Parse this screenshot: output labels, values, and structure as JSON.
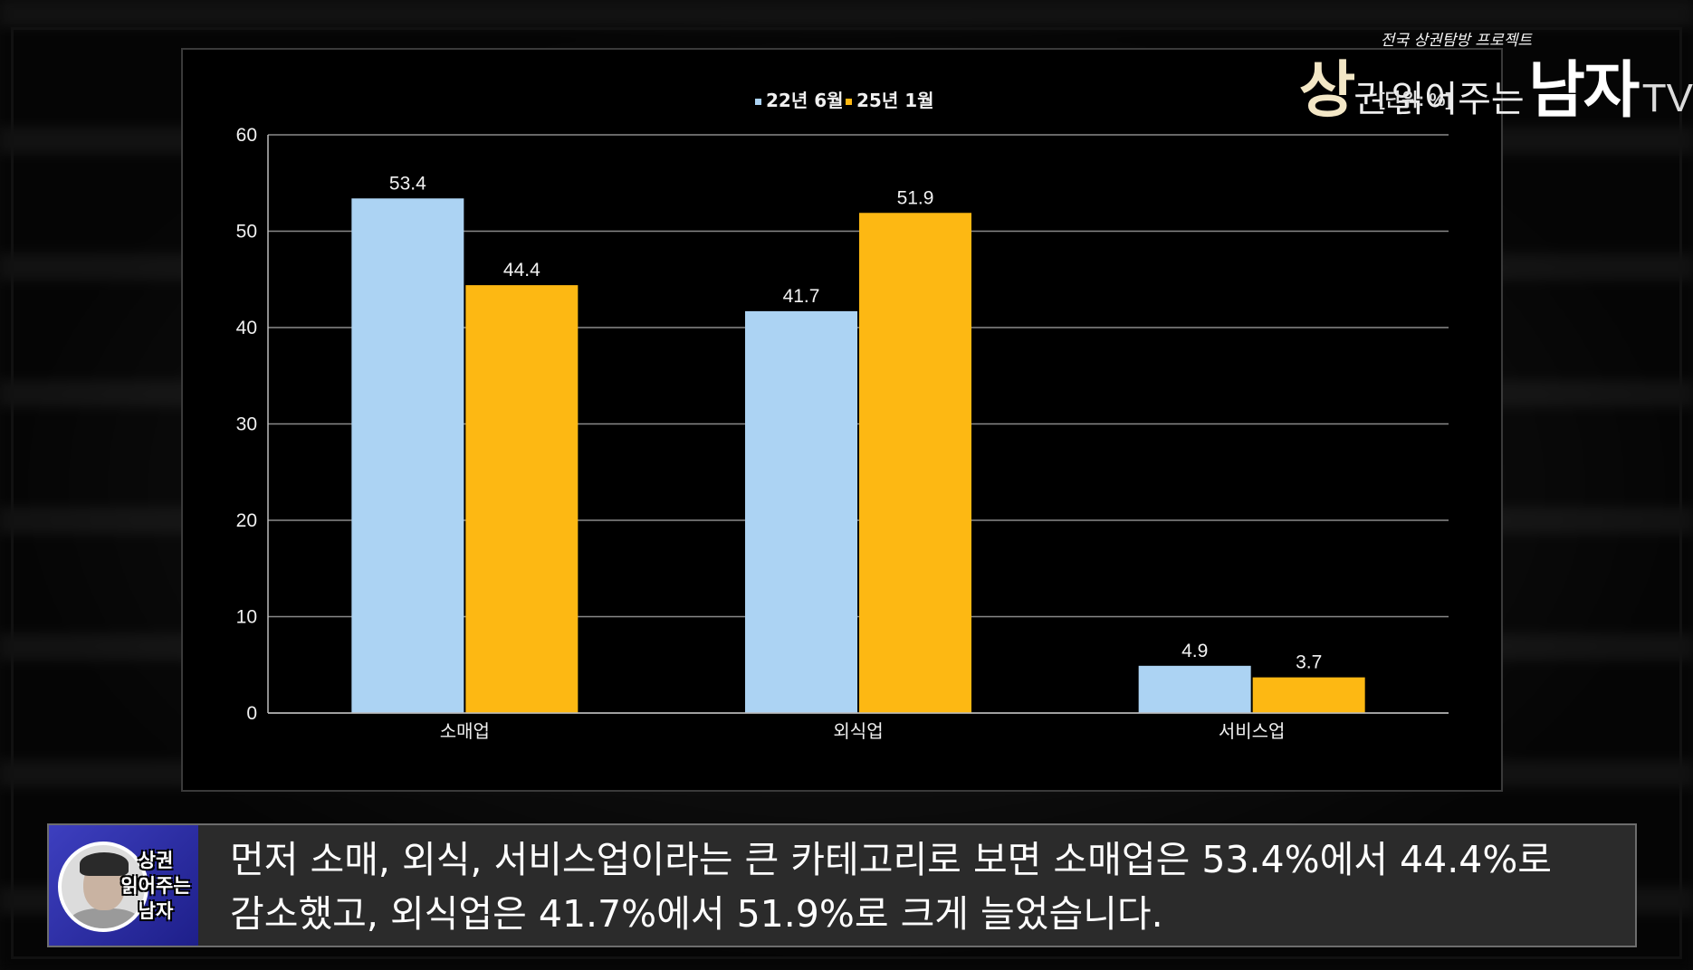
{
  "brand": {
    "tagline": "전국 상권탐방 프로젝트",
    "word1_big": "상",
    "word1_small": "권",
    "word2": "읽어주는",
    "word3": "남자",
    "suffix": "TV"
  },
  "unit_label": "[단위: %]",
  "chart_data": {
    "type": "bar",
    "categories": [
      "소매업",
      "외식업",
      "서비스업"
    ],
    "series": [
      {
        "name": "22년 6월",
        "values": [
          53.4,
          41.7,
          4.9
        ],
        "color": "#acd3f3"
      },
      {
        "name": "25년 1월",
        "values": [
          44.4,
          51.9,
          3.7
        ],
        "color": "#fdb813"
      }
    ],
    "ylim": [
      0,
      60
    ],
    "yticks": [
      0,
      10,
      20,
      30,
      40,
      50,
      60
    ],
    "grid": true,
    "legend_position": "top-center",
    "title": "",
    "xlabel": "",
    "ylabel": ""
  },
  "subtitle": {
    "line1": "먼저 소매, 외식, 서비스업이라는 큰 카테고리로 보면 소매업은 53.4%에서 44.4%로",
    "line2": "감소했고, 외식업은 41.7%에서 51.9%로 크게 늘었습니다."
  },
  "avatar_logo": {
    "line1": "상권",
    "line2": "읽어주는",
    "line3": "남자"
  }
}
